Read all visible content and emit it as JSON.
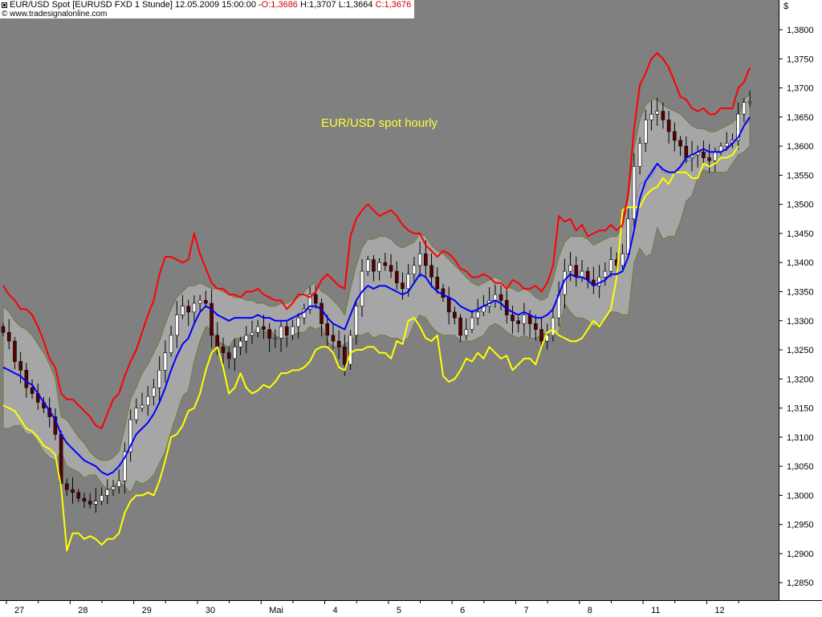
{
  "header": {
    "instrument": "EUR/USD Spot [EURUSD FXD  1 Stunde] 12.05.2009 15:00:00 -",
    "open": "O:1,3686",
    "high": "H:1,3707",
    "low": "L:1,3664",
    "close": "C:1,3676",
    "source": "© www.tradesignalonline.com"
  },
  "colors": {
    "plot_background": "#808080",
    "band_fill": "#a6a6a6",
    "band_edge": "#6e7a3a",
    "upper_channel": "#ff0000",
    "lower_channel": "#ffff00",
    "middle_line": "#0000ff",
    "candle_up": "#ffffff",
    "candle_down": "#5a0000",
    "wick": "#000000"
  },
  "chart_data": {
    "type": "candlestick",
    "title": "EUR/USD spot hourly",
    "y_unit": "$",
    "ylim": [
      1.282,
      1.384
    ],
    "yticks": [
      "1,3800",
      "1,3750",
      "1,3700",
      "1,3650",
      "1,3600",
      "1,3550",
      "1,3500",
      "1,3450",
      "1,3400",
      "1,3350",
      "1,3300",
      "1,3250",
      "1,3200",
      "1,3150",
      "1,3100",
      "1,3050",
      "1,3000",
      "1,2950",
      "1,2900",
      "1,2850"
    ],
    "xlabels": [
      "27",
      "28",
      "29",
      "30",
      "Mai",
      "4",
      "5",
      "6",
      "7",
      "8",
      "11",
      "12"
    ],
    "xlabel_index": [
      0,
      11,
      22,
      33,
      44,
      55,
      66,
      77,
      88,
      99,
      110,
      121
    ],
    "close": [
      1.328,
      1.3265,
      1.323,
      1.3215,
      1.3185,
      1.3175,
      1.316,
      1.315,
      1.3135,
      1.3105,
      1.302,
      1.301,
      1.3005,
      1.2995,
      1.299,
      1.2985,
      1.299,
      1.3,
      1.301,
      1.3015,
      1.3025,
      1.3075,
      1.313,
      1.315,
      1.3155,
      1.317,
      1.3185,
      1.3215,
      1.3245,
      1.3275,
      1.331,
      1.3325,
      1.3315,
      1.333,
      1.3335,
      1.333,
      1.3275,
      1.3255,
      1.3245,
      1.3235,
      1.3255,
      1.3265,
      1.3275,
      1.328,
      1.329,
      1.3285,
      1.327,
      1.327,
      1.329,
      1.3275,
      1.329,
      1.3305,
      1.332,
      1.3345,
      1.333,
      1.3295,
      1.3275,
      1.3265,
      1.3255,
      1.3225,
      1.3275,
      1.3325,
      1.3385,
      1.3405,
      1.3385,
      1.34,
      1.3395,
      1.3385,
      1.3365,
      1.3355,
      1.338,
      1.3395,
      1.3415,
      1.3395,
      1.3375,
      1.3355,
      1.334,
      1.3315,
      1.3305,
      1.3275,
      1.3285,
      1.3305,
      1.3315,
      1.3325,
      1.3335,
      1.3345,
      1.3335,
      1.331,
      1.33,
      1.3295,
      1.331,
      1.3295,
      1.3285,
      1.3265,
      1.3275,
      1.3305,
      1.3345,
      1.3385,
      1.3395,
      1.3375,
      1.3385,
      1.337,
      1.336,
      1.3375,
      1.3385,
      1.3405,
      1.3395,
      1.3415,
      1.3475,
      1.3565,
      1.3605,
      1.3645,
      1.3655,
      1.366,
      1.3645,
      1.3625,
      1.361,
      1.36,
      1.358,
      1.3585,
      1.359,
      1.358,
      1.3575,
      1.359,
      1.36,
      1.3605,
      1.361,
      1.3655,
      1.3675,
      1.3676
    ],
    "series": [
      {
        "name": "",
        "role": "upper channel",
        "values": [
          1.336,
          1.3345,
          1.3335,
          1.332,
          1.332,
          1.331,
          1.329,
          1.3265,
          1.3235,
          1.322,
          1.3175,
          1.3165,
          1.3165,
          1.3155,
          1.3145,
          1.3135,
          1.312,
          1.3115,
          1.314,
          1.3165,
          1.3175,
          1.3205,
          1.323,
          1.325,
          1.328,
          1.331,
          1.3335,
          1.338,
          1.341,
          1.341,
          1.3405,
          1.34,
          1.3405,
          1.345,
          1.3415,
          1.339,
          1.3365,
          1.3355,
          1.3355,
          1.3345,
          1.3345,
          1.334,
          1.335,
          1.335,
          1.3355,
          1.3345,
          1.334,
          1.3335,
          1.3335,
          1.332,
          1.333,
          1.3345,
          1.3345,
          1.334,
          1.335,
          1.337,
          1.338,
          1.337,
          1.336,
          1.3355,
          1.3445,
          1.3475,
          1.349,
          1.35,
          1.349,
          1.348,
          1.3485,
          1.349,
          1.348,
          1.3465,
          1.3455,
          1.345,
          1.345,
          1.343,
          1.342,
          1.341,
          1.342,
          1.3415,
          1.3405,
          1.339,
          1.3385,
          1.3375,
          1.3375,
          1.338,
          1.3375,
          1.3365,
          1.3365,
          1.3355,
          1.337,
          1.3365,
          1.3355,
          1.3355,
          1.336,
          1.335,
          1.3365,
          1.3395,
          1.348,
          1.347,
          1.3475,
          1.3455,
          1.3465,
          1.3445,
          1.345,
          1.3455,
          1.3455,
          1.3465,
          1.3455,
          1.3465,
          1.352,
          1.363,
          1.3705,
          1.3725,
          1.375,
          1.376,
          1.375,
          1.3735,
          1.371,
          1.3685,
          1.368,
          1.3665,
          1.366,
          1.3665,
          1.3655,
          1.3655,
          1.3665,
          1.3665,
          1.3665,
          1.37,
          1.371,
          1.3735
        ]
      },
      {
        "name": "",
        "role": "middle line",
        "values": [
          1.322,
          1.3215,
          1.321,
          1.3205,
          1.3195,
          1.319,
          1.3175,
          1.316,
          1.3145,
          1.313,
          1.3105,
          1.309,
          1.308,
          1.307,
          1.306,
          1.3055,
          1.305,
          1.304,
          1.3035,
          1.304,
          1.305,
          1.3065,
          1.3085,
          1.3105,
          1.3115,
          1.3125,
          1.314,
          1.316,
          1.3185,
          1.3215,
          1.324,
          1.326,
          1.327,
          1.3295,
          1.3315,
          1.3325,
          1.332,
          1.331,
          1.3305,
          1.33,
          1.3305,
          1.3305,
          1.3305,
          1.3305,
          1.331,
          1.3305,
          1.3305,
          1.33,
          1.33,
          1.33,
          1.3305,
          1.331,
          1.3315,
          1.3325,
          1.3325,
          1.332,
          1.3305,
          1.3295,
          1.329,
          1.3285,
          1.331,
          1.3335,
          1.335,
          1.336,
          1.3355,
          1.336,
          1.336,
          1.3355,
          1.335,
          1.3345,
          1.335,
          1.3365,
          1.338,
          1.3375,
          1.336,
          1.335,
          1.3345,
          1.334,
          1.3335,
          1.3325,
          1.332,
          1.3315,
          1.332,
          1.3325,
          1.333,
          1.3335,
          1.333,
          1.332,
          1.3315,
          1.331,
          1.3315,
          1.331,
          1.3305,
          1.3305,
          1.331,
          1.332,
          1.3345,
          1.337,
          1.338,
          1.3375,
          1.3375,
          1.337,
          1.336,
          1.3365,
          1.337,
          1.338,
          1.338,
          1.3385,
          1.341,
          1.3455,
          1.351,
          1.354,
          1.3555,
          1.357,
          1.356,
          1.3555,
          1.3555,
          1.3565,
          1.358,
          1.3585,
          1.359,
          1.3595,
          1.359,
          1.359,
          1.359,
          1.3595,
          1.3605,
          1.3615,
          1.3635,
          1.365
        ]
      },
      {
        "name": "",
        "role": "lower channel",
        "values": [
          1.3155,
          1.315,
          1.3145,
          1.313,
          1.3115,
          1.311,
          1.31,
          1.3085,
          1.308,
          1.307,
          1.3015,
          1.2905,
          1.2935,
          1.2935,
          1.2925,
          1.293,
          1.2925,
          1.2915,
          1.2925,
          1.2925,
          1.2935,
          1.297,
          1.299,
          1.3,
          1.3,
          1.3005,
          1.3,
          1.3025,
          1.306,
          1.31,
          1.3105,
          1.312,
          1.3145,
          1.315,
          1.3175,
          1.3215,
          1.3245,
          1.3255,
          1.322,
          1.3175,
          1.3185,
          1.321,
          1.3185,
          1.3175,
          1.318,
          1.319,
          1.3185,
          1.3195,
          1.321,
          1.321,
          1.3215,
          1.3215,
          1.322,
          1.323,
          1.325,
          1.3255,
          1.3255,
          1.3245,
          1.322,
          1.3215,
          1.3245,
          1.325,
          1.325,
          1.3255,
          1.3255,
          1.3245,
          1.3245,
          1.3235,
          1.3265,
          1.326,
          1.33,
          1.3305,
          1.329,
          1.327,
          1.3265,
          1.3275,
          1.3205,
          1.3195,
          1.32,
          1.3215,
          1.3235,
          1.323,
          1.3245,
          1.3235,
          1.3255,
          1.3245,
          1.3235,
          1.324,
          1.3215,
          1.3225,
          1.3235,
          1.3235,
          1.3225,
          1.3255,
          1.328,
          1.3285,
          1.3275,
          1.327,
          1.3265,
          1.3265,
          1.327,
          1.3285,
          1.33,
          1.329,
          1.3305,
          1.332,
          1.3375,
          1.349,
          1.3495,
          1.3495,
          1.3495,
          1.3515,
          1.3525,
          1.353,
          1.3545,
          1.3535,
          1.3555,
          1.3555,
          1.3555,
          1.3545,
          1.3545,
          1.357,
          1.3565,
          1.357,
          1.358,
          1.358,
          1.3585,
          1.36
        ]
      },
      {
        "name": "",
        "role": "band upper",
        "values": [
          1.3325,
          1.3315,
          1.33,
          1.329,
          1.3285,
          1.3275,
          1.326,
          1.3245,
          1.3225,
          1.32,
          1.3135,
          1.313,
          1.3115,
          1.31,
          1.309,
          1.3075,
          1.3065,
          1.306,
          1.306,
          1.3065,
          1.3075,
          1.3115,
          1.3165,
          1.3185,
          1.321,
          1.3225,
          1.3245,
          1.3265,
          1.3295,
          1.332,
          1.334,
          1.335,
          1.336,
          1.336,
          1.3365,
          1.336,
          1.3355,
          1.3355,
          1.335,
          1.3345,
          1.334,
          1.334,
          1.3335,
          1.3335,
          1.333,
          1.333,
          1.3325,
          1.3325,
          1.333,
          1.333,
          1.3335,
          1.334,
          1.335,
          1.336,
          1.3365,
          1.335,
          1.3345,
          1.3335,
          1.3325,
          1.331,
          1.3355,
          1.3395,
          1.3425,
          1.344,
          1.344,
          1.3445,
          1.3445,
          1.344,
          1.343,
          1.3425,
          1.343,
          1.3435,
          1.345,
          1.3445,
          1.343,
          1.342,
          1.3415,
          1.3405,
          1.3395,
          1.3385,
          1.3375,
          1.3365,
          1.336,
          1.3365,
          1.337,
          1.3375,
          1.337,
          1.336,
          1.3355,
          1.335,
          1.3355,
          1.335,
          1.334,
          1.3335,
          1.334,
          1.337,
          1.341,
          1.3435,
          1.3445,
          1.3445,
          1.3445,
          1.344,
          1.343,
          1.3435,
          1.344,
          1.3445,
          1.3445,
          1.346,
          1.351,
          1.3595,
          1.3645,
          1.367,
          1.368,
          1.368,
          1.367,
          1.3665,
          1.366,
          1.3655,
          1.3645,
          1.3635,
          1.363,
          1.363,
          1.3625,
          1.3625,
          1.363,
          1.3635,
          1.364,
          1.365,
          1.368,
          1.369,
          1.3695
        ]
      },
      {
        "name": "",
        "role": "band lower",
        "values": [
          1.3115,
          1.3115,
          1.312,
          1.312,
          1.3105,
          1.3105,
          1.309,
          1.3075,
          1.3065,
          1.306,
          1.3075,
          1.305,
          1.3045,
          1.304,
          1.303,
          1.3035,
          1.3035,
          1.302,
          1.301,
          1.3015,
          1.3025,
          1.3015,
          1.3005,
          1.3025,
          1.302,
          1.3025,
          1.3035,
          1.3055,
          1.3075,
          1.311,
          1.314,
          1.317,
          1.318,
          1.323,
          1.3265,
          1.329,
          1.3285,
          1.3265,
          1.326,
          1.3255,
          1.327,
          1.327,
          1.3275,
          1.3275,
          1.329,
          1.328,
          1.3285,
          1.3275,
          1.327,
          1.327,
          1.3275,
          1.328,
          1.328,
          1.329,
          1.3285,
          1.329,
          1.3265,
          1.3255,
          1.3255,
          1.326,
          1.3265,
          1.3275,
          1.3275,
          1.328,
          1.327,
          1.3275,
          1.3275,
          1.327,
          1.327,
          1.3265,
          1.327,
          1.3295,
          1.331,
          1.3305,
          1.329,
          1.328,
          1.3275,
          1.3275,
          1.3275,
          1.3265,
          1.3265,
          1.3265,
          1.327,
          1.3275,
          1.329,
          1.3295,
          1.329,
          1.328,
          1.3275,
          1.327,
          1.3275,
          1.327,
          1.327,
          1.3275,
          1.328,
          1.327,
          1.328,
          1.333,
          1.3315,
          1.3305,
          1.3305,
          1.33,
          1.329,
          1.3295,
          1.33,
          1.3315,
          1.3315,
          1.331,
          1.331,
          1.34,
          1.3425,
          1.341,
          1.3415,
          1.346,
          1.344,
          1.3445,
          1.3445,
          1.347,
          1.3505,
          1.3515,
          1.3545,
          1.356,
          1.3555,
          1.3555,
          1.3555,
          1.3555,
          1.357,
          1.3585,
          1.359,
          1.36
        ]
      }
    ]
  }
}
